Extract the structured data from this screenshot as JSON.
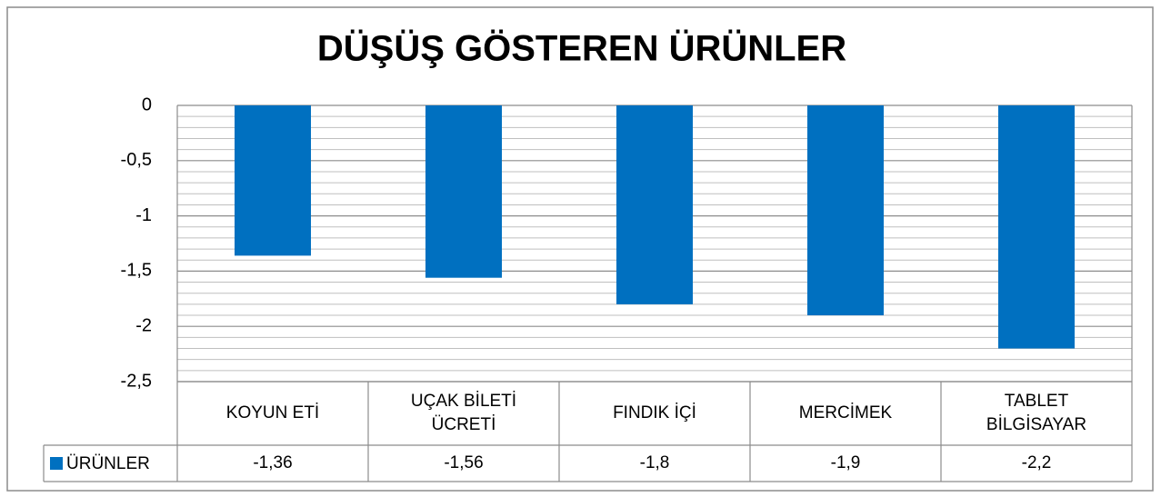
{
  "chart_data": {
    "type": "bar",
    "title": "DÜŞÜŞ GÖSTEREN ÜRÜNLER",
    "categories": [
      "KOYUN ETİ",
      "UÇAK BİLETİ ÜCRETİ",
      "FINDIK İÇİ",
      "MERCİMEK",
      "TABLET BİLGİSAYAR"
    ],
    "series": [
      {
        "name": "ÜRÜNLER",
        "color": "#0070c0",
        "values": [
          -1.36,
          -1.56,
          -1.8,
          -1.9,
          -2.2
        ],
        "value_labels": [
          "-1,36",
          "-1,56",
          "-1,8",
          "-1,9",
          "-2,2"
        ]
      }
    ],
    "ylim": [
      -2.5,
      0
    ],
    "yticks": [
      0,
      {
        "value": -0.5,
        "label": "-0,5"
      },
      -1,
      {
        "value": -1.5,
        "label": "-1,5"
      },
      -2,
      {
        "value": -2.5,
        "label": "-2,5"
      }
    ],
    "minor_yticks": [
      -0.1,
      -0.2,
      -0.3,
      -0.4,
      -0.6,
      -0.7,
      -0.8,
      -0.9,
      -1.1,
      -1.2,
      -1.3,
      -1.4,
      -1.6,
      -1.7,
      -1.8,
      -1.9,
      -2.1,
      -2.2,
      -2.3,
      -2.4
    ],
    "grid": true,
    "data_table": true
  }
}
